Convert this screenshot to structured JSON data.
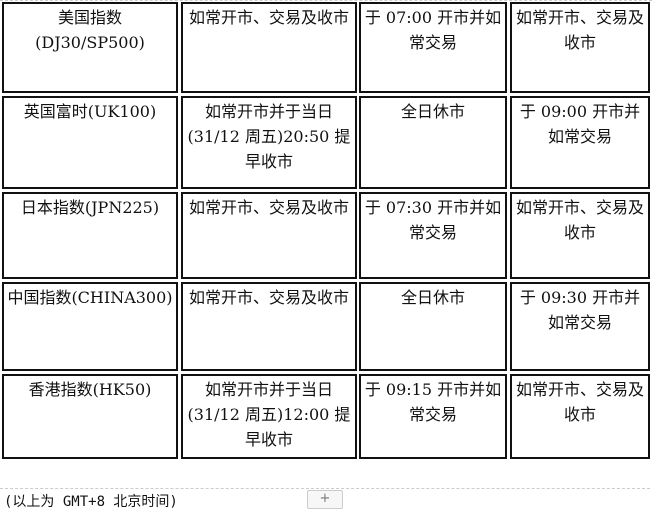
{
  "rows": [
    {
      "index": "美国指数(DJ30/SP500)",
      "col2": "如常开市、交易及收市",
      "col3": "于 07:00 开市并如常交易",
      "col4": "如常开市、交易及收市"
    },
    {
      "index": "英国富时(UK100)",
      "col2": "如常开市并于当日(31/12 周五)20:50 提早收市",
      "col3": "全日休市",
      "col4": "于 09:00 开市并如常交易"
    },
    {
      "index": "日本指数(JPN225)",
      "col2": "如常开市、交易及收市",
      "col3": "于 07:30 开市并如常交易",
      "col4": "如常开市、交易及收市"
    },
    {
      "index": "中国指数(CHINA300)",
      "col2": "如常开市、交易及收市",
      "col3": "全日休市",
      "col4": "于 09:30 开市并如常交易"
    },
    {
      "index": "香港指数(HK50)",
      "col2": "如常开市并于当日(31/12 周五)12:00 提早收市",
      "col3": "于 09:15 开市并如常交易",
      "col4": "如常开市、交易及收市"
    }
  ],
  "footer": {
    "note": "(以上为 GMT+8 北京时间)",
    "expand_label": "+"
  }
}
